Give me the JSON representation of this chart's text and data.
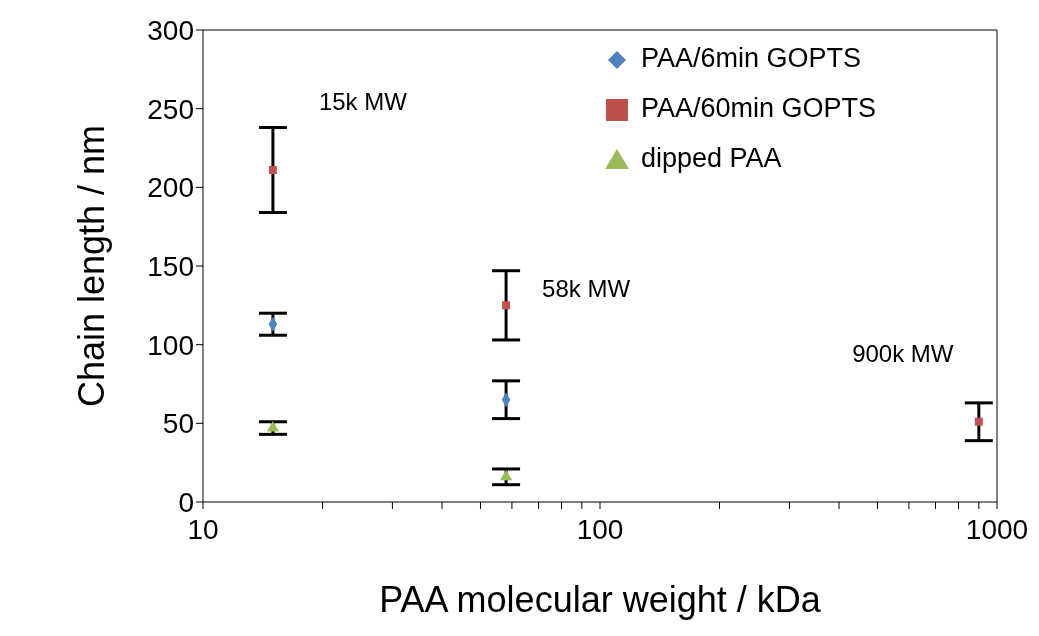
{
  "chart_data": {
    "type": "scatter",
    "xlabel": "PAA molecular weight  / kDa",
    "ylabel": "Chain length / nm",
    "log": "x",
    "xlim": [
      10,
      1000
    ],
    "ylim": [
      0,
      300
    ],
    "xticks": [
      10,
      {
        "value": 20,
        "label": null
      },
      {
        "value": 30,
        "label": null
      },
      {
        "value": 40,
        "label": null
      },
      {
        "value": 50,
        "label": null
      },
      {
        "value": 60,
        "label": null
      },
      {
        "value": 70,
        "label": null
      },
      {
        "value": 80,
        "label": null
      },
      {
        "value": 90,
        "label": null
      },
      100,
      {
        "value": 200,
        "label": null
      },
      {
        "value": 300,
        "label": null
      },
      {
        "value": 400,
        "label": null
      },
      {
        "value": 500,
        "label": null
      },
      {
        "value": 600,
        "label": null
      },
      {
        "value": 700,
        "label": null
      },
      {
        "value": 800,
        "label": null
      },
      {
        "value": 900,
        "label": null
      },
      1000
    ],
    "yticks": [
      0,
      50,
      100,
      150,
      200,
      250,
      300
    ],
    "grid": false,
    "legend": "top right",
    "series": [
      {
        "name": "PAA/6min GOPTS",
        "color": "#4f81bd",
        "marker": "diamond",
        "x": [
          15,
          58
        ],
        "values": [
          113,
          65
        ],
        "errors": [
          7,
          12
        ]
      },
      {
        "name": "PAA/60min GOPTS",
        "color": "#c0504d",
        "marker": "square",
        "x": [
          15,
          58,
          900
        ],
        "values": [
          211,
          125,
          51
        ],
        "errors": [
          27,
          22,
          12
        ]
      },
      {
        "name": "dipped PAA",
        "color": "#9bbb59",
        "marker": "triangle",
        "x": [
          15,
          58
        ],
        "values": [
          47,
          16
        ],
        "errors": [
          4,
          5
        ]
      }
    ],
    "annotations": [
      {
        "text": "15k MW",
        "x": 15,
        "y": 238
      },
      {
        "text": "58k MW",
        "x": 58,
        "y": 125
      },
      {
        "text": "900k MW",
        "x": 900,
        "y": 51
      }
    ]
  }
}
